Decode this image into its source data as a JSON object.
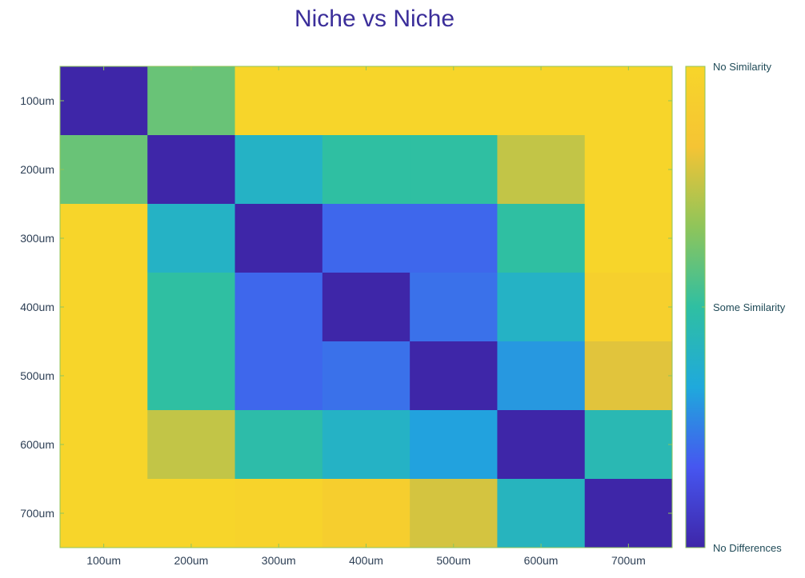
{
  "chart_data": {
    "type": "heatmap",
    "title": "Niche vs Niche",
    "xlabel": "",
    "ylabel": "",
    "x_categories": [
      "100um",
      "200um",
      "300um",
      "400um",
      "500um",
      "600um",
      "700um"
    ],
    "y_categories": [
      "100um",
      "200um",
      "300um",
      "400um",
      "500um",
      "600um",
      "700um"
    ],
    "value_range": [
      0,
      1
    ],
    "values": [
      [
        0.0,
        0.6,
        1.0,
        1.0,
        1.0,
        1.0,
        1.0
      ],
      [
        0.6,
        0.0,
        0.4,
        0.5,
        0.5,
        0.75,
        1.0
      ],
      [
        1.0,
        0.4,
        0.0,
        0.2,
        0.2,
        0.5,
        1.0
      ],
      [
        1.0,
        0.5,
        0.2,
        0.0,
        0.22,
        0.4,
        0.95
      ],
      [
        1.0,
        0.5,
        0.2,
        0.22,
        0.0,
        0.3,
        0.8
      ],
      [
        1.0,
        0.75,
        0.48,
        0.4,
        0.32,
        0.0,
        0.45
      ],
      [
        1.0,
        1.0,
        0.98,
        0.93,
        0.78,
        0.42,
        0.0
      ]
    ],
    "colorbar": {
      "tick_labels": [
        {
          "value": 1.0,
          "label": "No Similarity"
        },
        {
          "value": 0.5,
          "label": "Some Similarity"
        },
        {
          "value": 0.0,
          "label": "No Differences"
        }
      ]
    },
    "colormap": [
      "#3e26a8",
      "#4656f0",
      "#1fa9dc",
      "#2fbfa2",
      "#8fc55a",
      "#f5c434",
      "#f7d52a"
    ],
    "axis_color": "#8fc55a",
    "grid": false
  }
}
